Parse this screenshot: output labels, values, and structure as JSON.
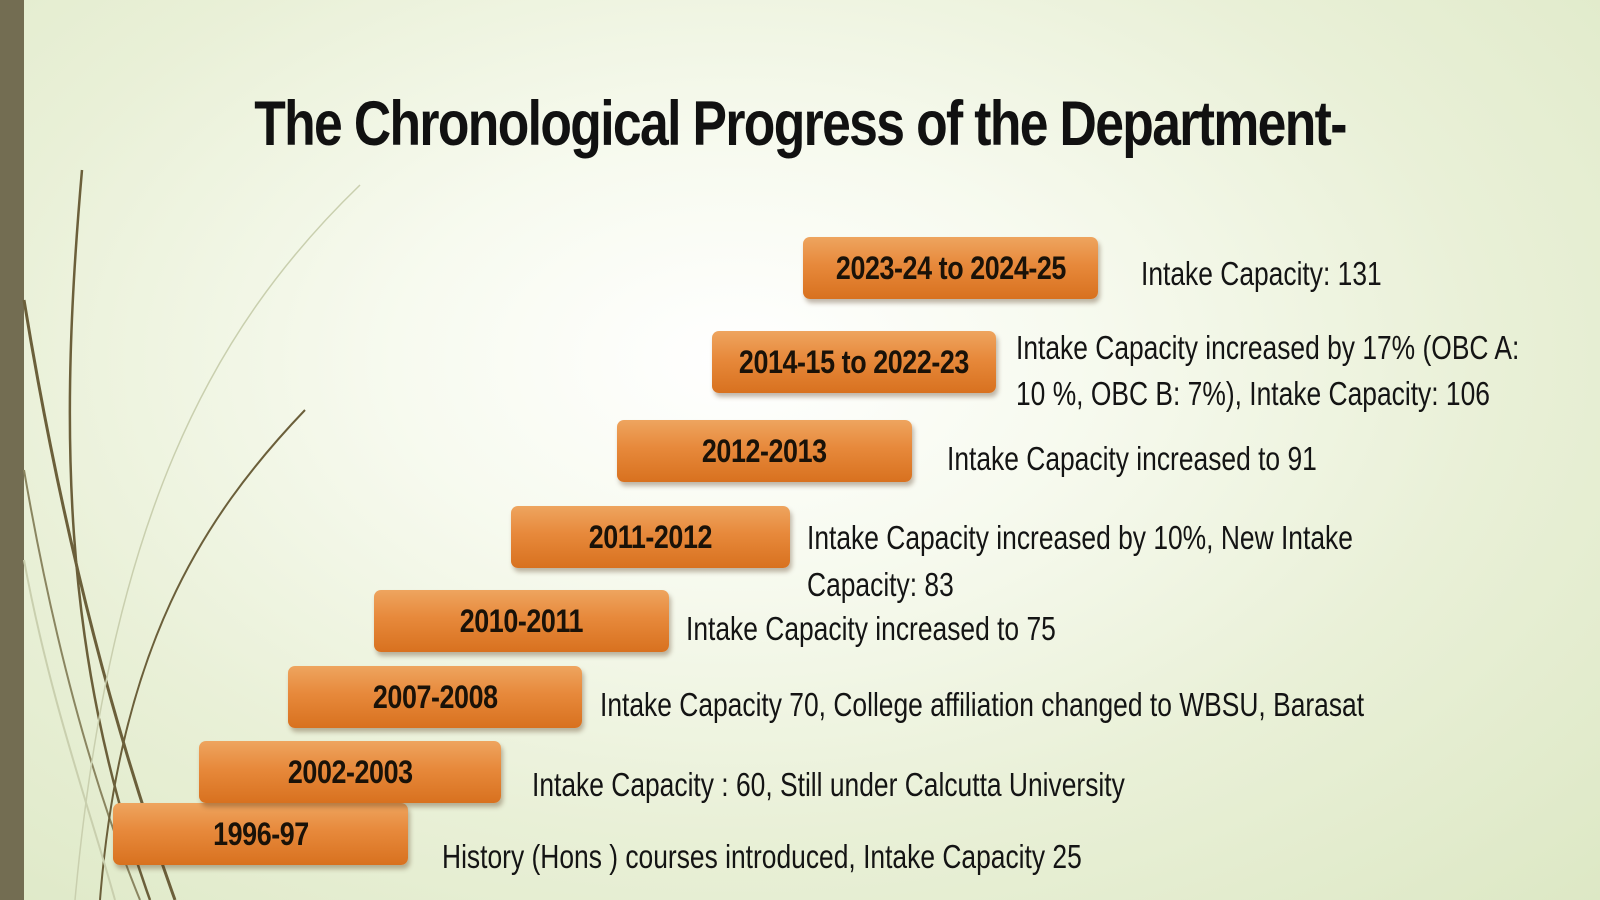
{
  "title": "The Chronological Progress of the Department-",
  "accent_colors": {
    "step_fill": "#e7893b",
    "left_bar": "#736d52",
    "decor_line": "#6b5f3a"
  },
  "milestones": [
    {
      "period": "1996-97",
      "description": "History (Hons )  courses introduced, Intake Capacity 25"
    },
    {
      "period": "2002-2003",
      "description": "Intake Capacity : 60, Still under Calcutta University"
    },
    {
      "period": "2007-2008",
      "description": "Intake Capacity 70, College affiliation changed to WBSU, Barasat"
    },
    {
      "period": "2010-2011",
      "description": "Intake Capacity increased to 75"
    },
    {
      "period": "2011-2012",
      "description_line1": "Intake Capacity increased by 10%, New Intake",
      "description_line2": "Capacity: 83"
    },
    {
      "period": "2012-2013",
      "description": "Intake Capacity increased to 91"
    },
    {
      "period": "2014-15 to 2022-23",
      "description_line1": "Intake Capacity increased by 17% (OBC A:",
      "description_line2": "10 %, OBC B: 7%), Intake Capacity: 106"
    },
    {
      "period": "2023-24 to 2024-25",
      "description": "Intake Capacity: 131"
    }
  ]
}
